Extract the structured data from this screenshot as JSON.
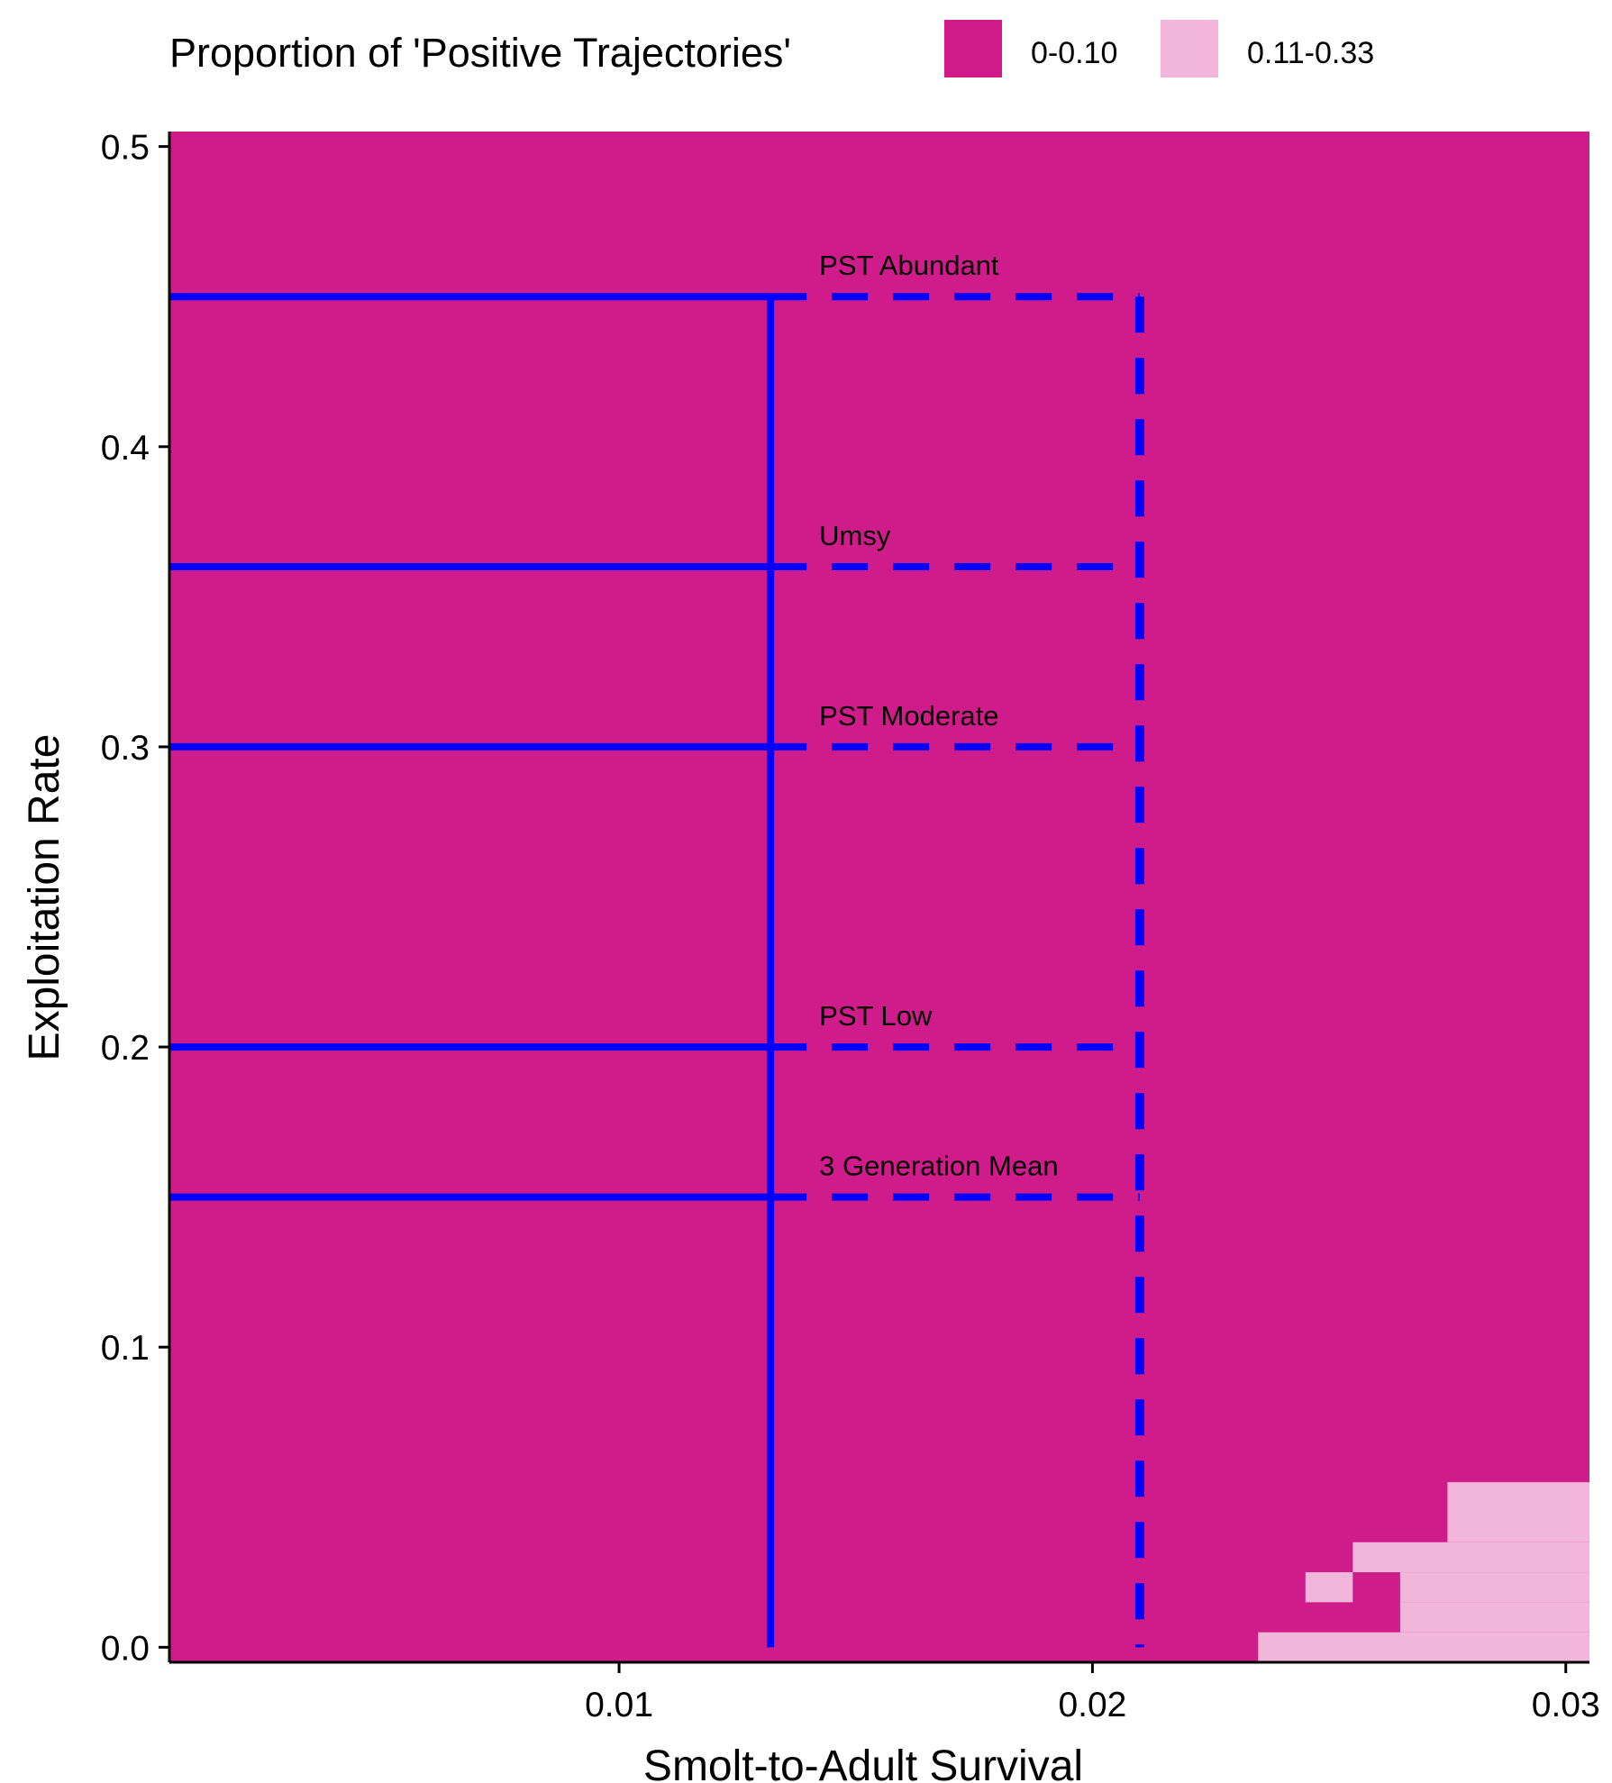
{
  "chart_data": {
    "type": "heatmap",
    "xlabel": "Smolt-to-Adult Survival",
    "ylabel": "Exploitation Rate",
    "xlim": [
      0.0005,
      0.0305
    ],
    "ylim": [
      -0.005,
      0.505
    ],
    "x_ticks": [
      {
        "value": 0.01,
        "label": "0.01"
      },
      {
        "value": 0.02,
        "label": "0.02"
      },
      {
        "value": 0.03,
        "label": "0.03"
      }
    ],
    "y_ticks": [
      {
        "value": 0.0,
        "label": "0.0"
      },
      {
        "value": 0.1,
        "label": "0.1"
      },
      {
        "value": 0.2,
        "label": "0.2"
      },
      {
        "value": 0.3,
        "label": "0.3"
      },
      {
        "value": 0.4,
        "label": "0.4"
      },
      {
        "value": 0.5,
        "label": "0.5"
      }
    ],
    "legend": {
      "title": "Proportion of 'Positive Trajectories'",
      "position": "top",
      "entries": [
        {
          "label": "0-0.10",
          "color": "#D01C8B"
        },
        {
          "label": "0.11-0.33",
          "color": "#F1B6DA"
        }
      ]
    },
    "background_class": "0-0.10",
    "cells": [
      {
        "x0": 0.0235,
        "x1": 0.0305,
        "y0": -0.005,
        "y1": 0.005,
        "class": "0.11-0.33"
      },
      {
        "x0": 0.0265,
        "x1": 0.0305,
        "y0": 0.005,
        "y1": 0.015,
        "class": "0.11-0.33"
      },
      {
        "x0": 0.0245,
        "x1": 0.0255,
        "y0": 0.015,
        "y1": 0.025,
        "class": "0.11-0.33"
      },
      {
        "x0": 0.0265,
        "x1": 0.0305,
        "y0": 0.015,
        "y1": 0.025,
        "class": "0.11-0.33"
      },
      {
        "x0": 0.0255,
        "x1": 0.0305,
        "y0": 0.025,
        "y1": 0.035,
        "class": "0.11-0.33"
      },
      {
        "x0": 0.0275,
        "x1": 0.0305,
        "y0": 0.035,
        "y1": 0.055,
        "class": "0.11-0.33"
      }
    ],
    "reference_lines": {
      "color": "#0000FF",
      "solid_x_end": 0.0132,
      "dashed_x_end": 0.021,
      "horizontal": [
        {
          "y": 0.45,
          "label": "PST Abundant"
        },
        {
          "y": 0.36,
          "label": "Umsy"
        },
        {
          "y": 0.3,
          "label": "PST Moderate"
        },
        {
          "y": 0.2,
          "label": "PST Low"
        },
        {
          "y": 0.15,
          "label": "3 Generation Mean"
        }
      ],
      "vertical": [
        {
          "x": 0.0132,
          "y_top": 0.45,
          "style": "solid"
        },
        {
          "x": 0.021,
          "y_top": 0.45,
          "style": "dashed"
        }
      ]
    }
  }
}
